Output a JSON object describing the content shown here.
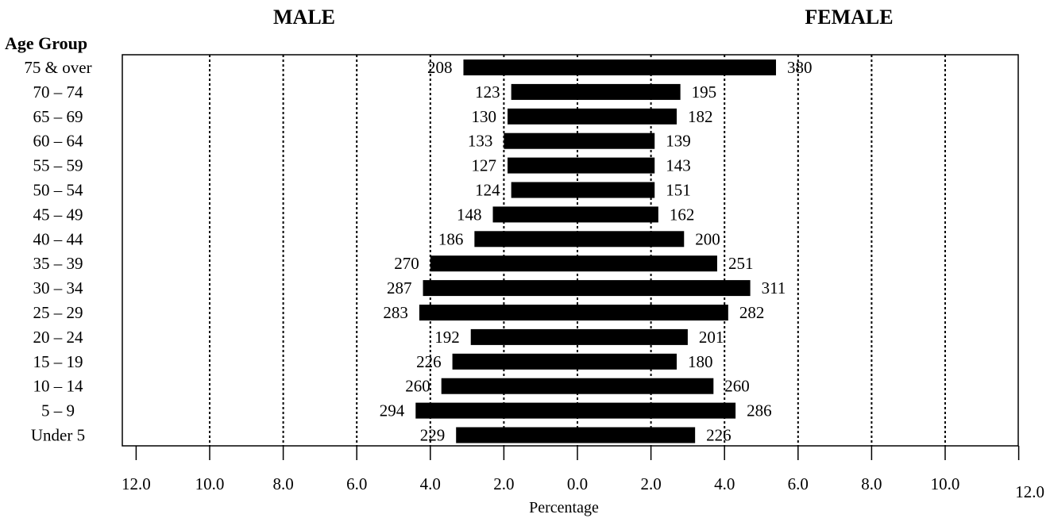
{
  "chart_data": {
    "type": "bar",
    "orientation": "horizontal-diverging",
    "title": "",
    "left_header": "MALE",
    "right_header": "FEMALE",
    "category_header": "Age Group",
    "xlabel": "Percentage",
    "xlim": [
      -12,
      12
    ],
    "x_tick_labels": [
      "12.0",
      "10.0",
      "8.0",
      "6.0",
      "4.0",
      "2.0",
      "0.0",
      "2.0",
      "4.0",
      "6.0",
      "8.0",
      "10.0",
      "12.0"
    ],
    "grid": "dotted-vertical",
    "bar_color": "#000000",
    "categories": [
      "75 & over",
      "70 – 74",
      "65 – 69",
      "60 – 64",
      "55 – 59",
      "50 – 54",
      "45 – 49",
      "40 – 44",
      "35 – 39",
      "30 – 34",
      "25 – 29",
      "20 – 24",
      "15 – 19",
      "10 – 14",
      "5 – 9",
      "Under 5"
    ],
    "series": [
      {
        "name": "MALE",
        "side": "left",
        "values": [
          3.1,
          1.8,
          1.9,
          2.0,
          1.9,
          1.8,
          2.3,
          2.8,
          4.0,
          4.2,
          4.3,
          2.9,
          3.4,
          3.7,
          4.4,
          3.3
        ],
        "labels": [
          "208",
          "123",
          "130",
          "133",
          "127",
          "124",
          "148",
          "186",
          "270",
          "287",
          "283",
          "192",
          "226",
          "260",
          "294",
          "229"
        ]
      },
      {
        "name": "FEMALE",
        "side": "right",
        "values": [
          5.4,
          2.8,
          2.7,
          2.1,
          2.1,
          2.1,
          2.2,
          2.9,
          3.8,
          4.7,
          4.1,
          3.0,
          2.7,
          3.7,
          4.3,
          3.2
        ],
        "labels": [
          "380",
          "195",
          "182",
          "139",
          "143",
          "151",
          "162",
          "200",
          "251",
          "311",
          "282",
          "201",
          "180",
          "260",
          "286",
          "226"
        ]
      }
    ]
  }
}
